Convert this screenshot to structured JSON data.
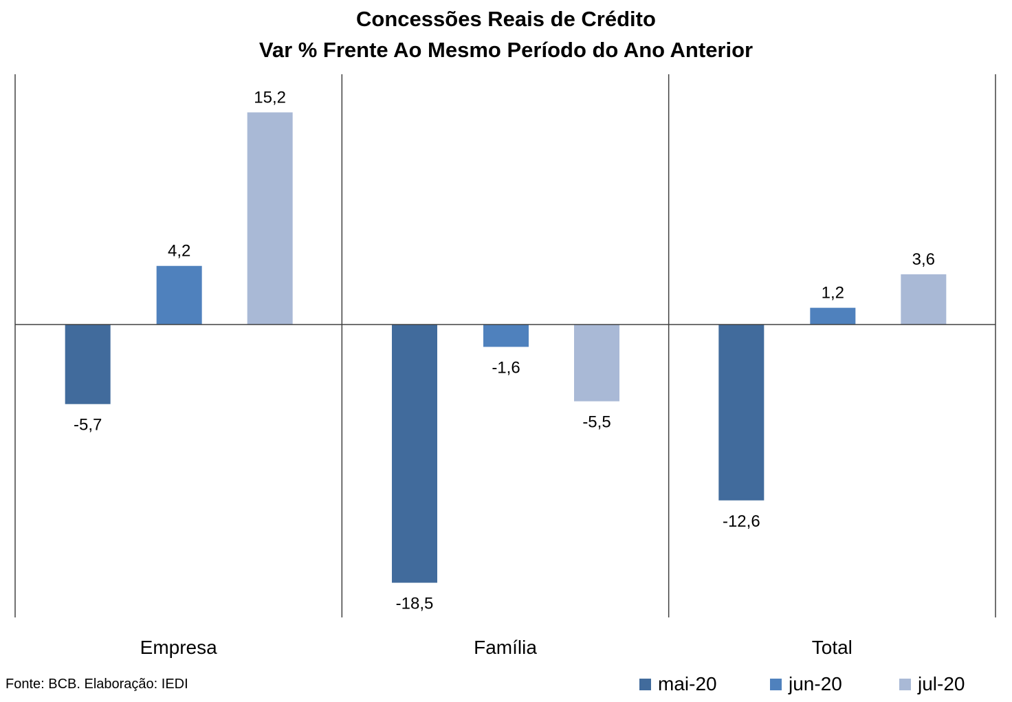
{
  "chart_data": {
    "type": "bar",
    "title": "Concessões Reais de Crédito",
    "subtitle": "Var % Frente Ao Mesmo Período do Ano Anterior",
    "categories": [
      "Empresa",
      "Família",
      "Total"
    ],
    "series": [
      {
        "name": "mai-20",
        "color": "#416B9C",
        "values": [
          -5.7,
          -18.5,
          -12.6
        ],
        "labels": [
          "-5,7",
          "-18,5",
          "-12,6"
        ]
      },
      {
        "name": "jun-20",
        "color": "#4F81BD",
        "values": [
          4.2,
          -1.6,
          1.2
        ],
        "labels": [
          "4,2",
          "-1,6",
          "1,2"
        ]
      },
      {
        "name": "jul-20",
        "color": "#A9B9D6",
        "values": [
          15.2,
          -5.5,
          3.6
        ],
        "labels": [
          "15,2",
          "-5,5",
          "3,6"
        ]
      }
    ],
    "ylim": [
      -21,
      18
    ],
    "grid": false,
    "legend": "bottom-right"
  },
  "source": "Fonte: BCB. Elaboração: IEDI"
}
